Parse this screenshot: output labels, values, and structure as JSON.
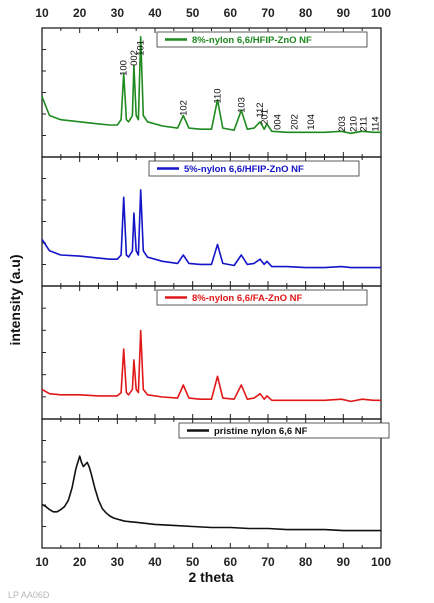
{
  "chart_data": {
    "type": "line",
    "xlabel": "2 theta",
    "ylabel": "intensity (a.u)",
    "xlim": [
      10,
      100
    ],
    "xticks": [
      10,
      20,
      30,
      40,
      50,
      60,
      70,
      80,
      90,
      100
    ],
    "panels": [
      {
        "name": "8%-nylon 6,6/HFIP-ZnO NF",
        "color": "#1f8a1f",
        "ylim": [
          0,
          100
        ],
        "x": [
          10,
          12,
          15,
          20,
          25,
          28,
          30,
          31,
          31.7,
          32.4,
          33,
          34,
          34.4,
          35,
          35.6,
          36.2,
          36.9,
          38,
          42,
          46,
          47.5,
          49,
          52,
          55,
          56.6,
          58,
          61,
          62.9,
          64.5,
          66.3,
          67.9,
          69,
          69.7,
          71,
          75,
          80,
          85,
          89.5,
          92,
          95,
          98,
          100
        ],
        "y": [
          48,
          30,
          26,
          24,
          22,
          21,
          21,
          26,
          70,
          26,
          24,
          30,
          78,
          30,
          26,
          105,
          30,
          24,
          20,
          18,
          30,
          18,
          17,
          17,
          45,
          18,
          16,
          35,
          17,
          18,
          24,
          17,
          22,
          15,
          14,
          14,
          14,
          15,
          13,
          15,
          14,
          14
        ]
      },
      {
        "name": "5%-nylon 6,6/HFIP-ZnO NF",
        "color": "#1414c8",
        "ylim": [
          0,
          100
        ],
        "x": [
          10,
          12,
          15,
          20,
          25,
          28,
          30,
          31,
          31.7,
          32.4,
          33,
          34,
          34.4,
          35,
          35.6,
          36.2,
          36.9,
          38,
          42,
          46,
          47.5,
          49,
          52,
          55,
          56.6,
          58,
          61,
          62.9,
          64.5,
          66.3,
          67.9,
          69,
          69.7,
          71,
          75,
          80,
          85,
          89.5,
          92,
          95,
          98,
          100
        ],
        "y": [
          35,
          24,
          20,
          19,
          17,
          16,
          16,
          20,
          75,
          20,
          18,
          24,
          60,
          24,
          20,
          82,
          24,
          18,
          14,
          12,
          20,
          12,
          11,
          11,
          30,
          12,
          10,
          20,
          11,
          12,
          16,
          11,
          14,
          9,
          9,
          8,
          8,
          9,
          8,
          8,
          8,
          8
        ]
      },
      {
        "name": "8%-nylon 6,6/FA-ZnO NF",
        "color": "#e01818",
        "ylim": [
          0,
          100
        ],
        "x": [
          10,
          12,
          15,
          20,
          25,
          28,
          30,
          31,
          31.7,
          32.4,
          33,
          34,
          34.4,
          35,
          35.6,
          36.2,
          36.9,
          38,
          42,
          46,
          47.5,
          49,
          52,
          55,
          56.6,
          58,
          61,
          62.9,
          64.5,
          66.3,
          67.9,
          69,
          69.7,
          71,
          75,
          80,
          85,
          89.5,
          92,
          95,
          98,
          100
        ],
        "y": [
          18,
          14,
          13,
          13,
          12,
          12,
          12,
          15,
          55,
          15,
          13,
          18,
          45,
          18,
          15,
          72,
          18,
          13,
          11,
          10,
          22,
          10,
          9,
          9,
          30,
          10,
          9,
          22,
          9,
          10,
          14,
          9,
          12,
          8,
          8,
          8,
          8,
          9,
          7,
          9,
          8,
          8
        ]
      },
      {
        "name": "pristine nylon 6,6 NF",
        "color": "#111111",
        "ylim": [
          0,
          100
        ],
        "x": [
          10,
          11,
          12,
          13,
          14,
          15,
          16,
          17,
          18,
          19,
          20,
          20.5,
          21,
          21.5,
          22,
          22.5,
          23,
          24,
          25,
          26,
          27,
          28,
          29,
          30,
          32,
          35,
          40,
          45,
          50,
          55,
          60,
          65,
          70,
          75,
          80,
          85,
          90,
          95,
          100
        ],
        "y": [
          32,
          30,
          27,
          25,
          25,
          27,
          30,
          36,
          48,
          66,
          78,
          72,
          68,
          70,
          72,
          68,
          62,
          48,
          36,
          28,
          24,
          21,
          19,
          18,
          16,
          15,
          13,
          12,
          11,
          10,
          10,
          9,
          9,
          8,
          8,
          8,
          7,
          7,
          7
        ]
      }
    ],
    "peak_labels": [
      {
        "text": "100",
        "x": 31.7
      },
      {
        "text": "002",
        "x": 34.4
      },
      {
        "text": "101",
        "x": 36.2
      },
      {
        "text": "102",
        "x": 47.5
      },
      {
        "text": "110",
        "x": 56.6
      },
      {
        "text": "103",
        "x": 62.9
      },
      {
        "text": "112",
        "x": 67.9
      },
      {
        "text": "201",
        "x": 69.1
      },
      {
        "text": "004",
        "x": 72.5
      },
      {
        "text": "202",
        "x": 77
      },
      {
        "text": "104",
        "x": 81.4
      },
      {
        "text": "203",
        "x": 89.6
      },
      {
        "text": "210",
        "x": 92.7
      },
      {
        "text": "211",
        "x": 95.3
      },
      {
        "text": "114",
        "x": 98.6
      }
    ],
    "grid": false,
    "legend_placement": "top-right of each panel"
  },
  "watermark": "LP AA06D"
}
